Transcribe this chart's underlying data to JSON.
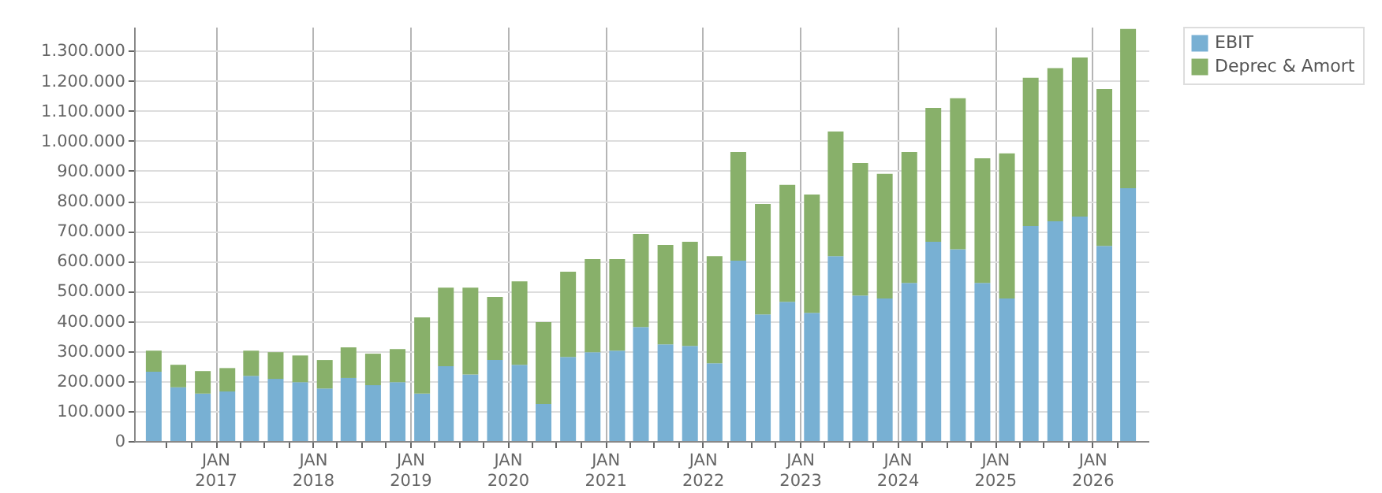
{
  "chart_data": {
    "type": "bar",
    "stacked": true,
    "legend": "top right",
    "grid": true,
    "x": [
      "2016-05-15",
      "2016-08-15",
      "2016-11-15",
      "2017-02-15",
      "2017-05-15",
      "2017-08-15",
      "2017-11-15",
      "2018-02-15",
      "2018-05-15",
      "2018-08-15",
      "2018-11-15",
      "2019-02-15",
      "2019-05-15",
      "2019-08-15",
      "2019-11-15",
      "2020-02-15",
      "2020-05-15",
      "2020-08-15",
      "2020-11-15",
      "2021-02-15",
      "2021-05-15",
      "2021-08-15",
      "2021-11-15",
      "2022-02-15",
      "2022-05-15",
      "2022-08-15",
      "2022-11-15",
      "2023-02-15",
      "2023-05-15",
      "2023-08-15",
      "2023-11-15",
      "2024-02-15",
      "2024-05-15",
      "2024-08-15",
      "2024-11-15",
      "2025-02-15",
      "2025-05-15",
      "2025-08-15",
      "2025-11-15",
      "2026-02-15",
      "2026-05-15"
    ],
    "series": [
      {
        "name": "EBIT",
        "color": "#78b0d3",
        "values": [
          231000,
          179000,
          158000,
          165000,
          217000,
          207000,
          196000,
          175000,
          210000,
          186000,
          196000,
          158000,
          249000,
          222000,
          270000,
          254000,
          123000,
          280000,
          296000,
          301000,
          380000,
          322000,
          317000,
          259000,
          601000,
          422000,
          464000,
          427000,
          616000,
          485000,
          475000,
          527000,
          664000,
          639000,
          527000,
          475000,
          716000,
          732000,
          748000,
          650000,
          842000
        ]
      },
      {
        "name": "Deprec & Amort",
        "color": "#88b06a",
        "values": [
          70000,
          75000,
          75000,
          78000,
          84000,
          89000,
          89000,
          95000,
          102000,
          105000,
          110000,
          254000,
          262000,
          289000,
          210000,
          278000,
          273000,
          284000,
          310000,
          305000,
          310000,
          331000,
          347000,
          357000,
          362000,
          368000,
          389000,
          394000,
          415000,
          441000,
          415000,
          436000,
          446000,
          503000,
          415000,
          483000,
          494000,
          510000,
          530000,
          523000,
          531000
        ]
      }
    ],
    "xlim": [
      "2016-04-01",
      "2026-07-01"
    ],
    "xticks": [
      {
        "value": "2016-07-01",
        "label": null
      },
      {
        "value": "2016-10-01",
        "label": null
      },
      {
        "value": "2017-01-01",
        "label": "JAN 2017"
      },
      {
        "value": "2017-04-01",
        "label": null
      },
      {
        "value": "2017-07-01",
        "label": null
      },
      {
        "value": "2017-10-01",
        "label": null
      },
      {
        "value": "2018-01-01",
        "label": "JAN 2018"
      },
      {
        "value": "2018-04-01",
        "label": null
      },
      {
        "value": "2018-07-01",
        "label": null
      },
      {
        "value": "2018-10-01",
        "label": null
      },
      {
        "value": "2019-01-01",
        "label": "JAN 2019"
      },
      {
        "value": "2019-04-01",
        "label": null
      },
      {
        "value": "2019-07-01",
        "label": null
      },
      {
        "value": "2019-10-01",
        "label": null
      },
      {
        "value": "2020-01-01",
        "label": "JAN 2020"
      },
      {
        "value": "2020-04-01",
        "label": null
      },
      {
        "value": "2020-07-01",
        "label": null
      },
      {
        "value": "2020-10-01",
        "label": null
      },
      {
        "value": "2021-01-01",
        "label": "JAN 2021"
      },
      {
        "value": "2021-04-01",
        "label": null
      },
      {
        "value": "2021-07-01",
        "label": null
      },
      {
        "value": "2021-10-01",
        "label": null
      },
      {
        "value": "2022-01-01",
        "label": "JAN 2022"
      },
      {
        "value": "2022-04-01",
        "label": null
      },
      {
        "value": "2022-07-01",
        "label": null
      },
      {
        "value": "2022-10-01",
        "label": null
      },
      {
        "value": "2023-01-01",
        "label": "JAN 2023"
      },
      {
        "value": "2023-04-01",
        "label": null
      },
      {
        "value": "2023-07-01",
        "label": null
      },
      {
        "value": "2023-10-01",
        "label": null
      },
      {
        "value": "2024-01-01",
        "label": "JAN 2024"
      },
      {
        "value": "2024-04-01",
        "label": null
      },
      {
        "value": "2024-07-01",
        "label": null
      },
      {
        "value": "2024-10-01",
        "label": null
      },
      {
        "value": "2025-01-01",
        "label": "JAN 2025"
      },
      {
        "value": "2025-04-01",
        "label": null
      },
      {
        "value": "2025-07-01",
        "label": null
      },
      {
        "value": "2025-10-01",
        "label": null
      },
      {
        "value": "2026-01-01",
        "label": "JAN 2026"
      },
      {
        "value": "2026-04-01",
        "label": null
      }
    ],
    "ylim": [
      0,
      1380000
    ],
    "yticks": [
      {
        "value": 0,
        "label": "0"
      },
      {
        "value": 100000,
        "label": "100.000"
      },
      {
        "value": 200000,
        "label": "200.000"
      },
      {
        "value": 300000,
        "label": "300.000"
      },
      {
        "value": 400000,
        "label": "400.000"
      },
      {
        "value": 500000,
        "label": "500.000"
      },
      {
        "value": 600000,
        "label": "600.000"
      },
      {
        "value": 700000,
        "label": "700.000"
      },
      {
        "value": 800000,
        "label": "800.000"
      },
      {
        "value": 900000,
        "label": "900.000"
      },
      {
        "value": 1000000,
        "label": "1.000.000"
      },
      {
        "value": 1100000,
        "label": "1.100.000"
      },
      {
        "value": 1200000,
        "label": "1.200.000"
      },
      {
        "value": 1300000,
        "label": "1.300.000"
      }
    ]
  }
}
